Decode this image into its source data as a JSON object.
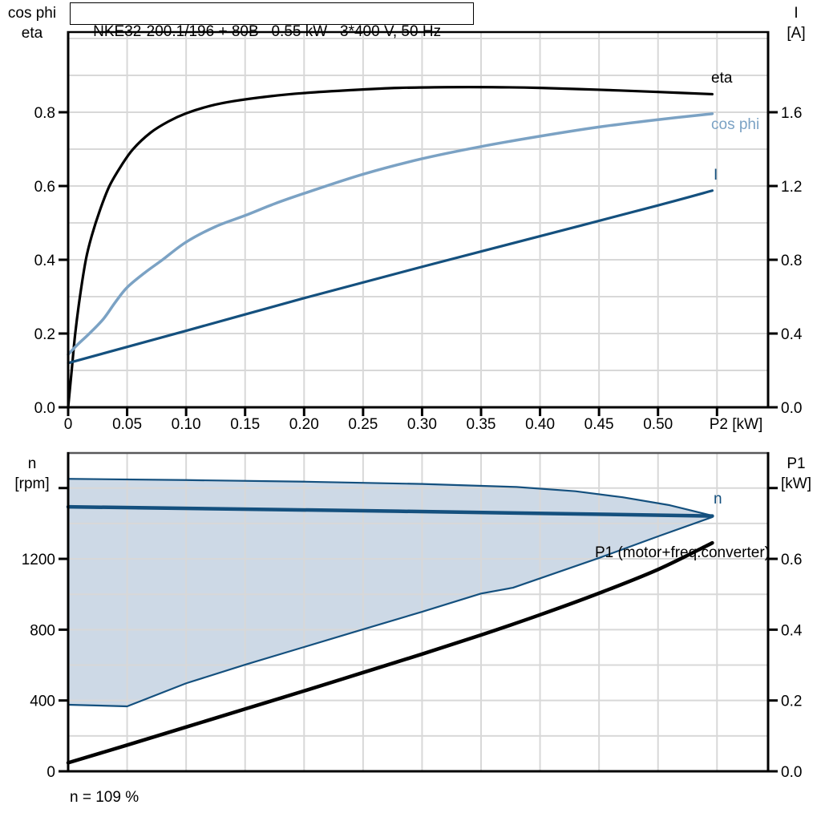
{
  "annotations": {
    "speed_note": "n = 109 %",
    "p1_curve_label": "P1 (motor+freq.converter)"
  },
  "colors": {
    "curve_black": "#000000",
    "curve_light_blue": "#7ba2c4",
    "curve_dark_blue": "#14507e",
    "region_fill": "#cdd9e6",
    "grid": "#d8d8d8",
    "frame": "#000000",
    "lower_frame_top": "#58585a"
  },
  "chart_data": [
    {
      "type": "line",
      "title": "NKE32-200.1/196 + 80B   0.55 kW   3*400 V, 50 Hz",
      "xlabel": "P2 [kW]",
      "ylabel_left": [
        "cos phi",
        "eta"
      ],
      "ylabel_right": [
        "I",
        "[A]"
      ],
      "xlim": [
        0,
        0.5933
      ],
      "ylim_left": [
        0,
        1.0174
      ],
      "ylim_right": [
        0,
        2.0348
      ],
      "xticks": [
        0,
        0.05,
        0.1,
        0.15,
        0.2,
        0.25,
        0.3,
        0.35,
        0.4,
        0.45,
        0.5,
        0.55
      ],
      "xtick_labels": [
        "0",
        "0.05",
        "0.10",
        "0.15",
        "0.20",
        "0.25",
        "0.30",
        "0.35",
        "0.40",
        "0.45",
        "0.50",
        ""
      ],
      "yticks_left": [
        0,
        0.2,
        0.4,
        0.6,
        0.8
      ],
      "ytick_labels_left": [
        "0.0",
        "0.2",
        "0.4",
        "0.6",
        "0.8"
      ],
      "yticks_right": [
        0,
        0.4,
        0.8,
        1.2,
        1.6
      ],
      "ytick_labels_right": [
        "0.0",
        "0.4",
        "0.8",
        "1.2",
        "1.6"
      ],
      "ygrid_step": 0.1,
      "grid_color": "#d8d8d8",
      "legend_position": "right-inline",
      "series": [
        {
          "name": "eta",
          "axis": "left",
          "color": "#000000",
          "width": 3.2,
          "smooth": true,
          "points": [
            [
              0,
              0
            ],
            [
              0.003,
              0.1
            ],
            [
              0.006,
              0.2
            ],
            [
              0.01,
              0.3
            ],
            [
              0.015,
              0.4
            ],
            [
              0.02,
              0.465
            ],
            [
              0.027,
              0.535
            ],
            [
              0.035,
              0.6
            ],
            [
              0.045,
              0.655
            ],
            [
              0.055,
              0.7
            ],
            [
              0.07,
              0.745
            ],
            [
              0.085,
              0.775
            ],
            [
              0.1,
              0.797
            ],
            [
              0.12,
              0.817
            ],
            [
              0.14,
              0.83
            ],
            [
              0.17,
              0.843
            ],
            [
              0.2,
              0.852
            ],
            [
              0.24,
              0.86
            ],
            [
              0.28,
              0.866
            ],
            [
              0.32,
              0.868
            ],
            [
              0.36,
              0.868
            ],
            [
              0.4,
              0.866
            ],
            [
              0.45,
              0.861
            ],
            [
              0.5,
              0.855
            ],
            [
              0.546,
              0.849
            ]
          ]
        },
        {
          "name": "cos phi",
          "axis": "left",
          "color": "#7ba2c4",
          "width": 3.5,
          "smooth": true,
          "points": [
            [
              0,
              0.143
            ],
            [
              0.008,
              0.17
            ],
            [
              0.018,
              0.2
            ],
            [
              0.03,
              0.24
            ],
            [
              0.04,
              0.285
            ],
            [
              0.05,
              0.325
            ],
            [
              0.065,
              0.365
            ],
            [
              0.08,
              0.4
            ],
            [
              0.1,
              0.448
            ],
            [
              0.125,
              0.49
            ],
            [
              0.15,
              0.52
            ],
            [
              0.175,
              0.552
            ],
            [
              0.2,
              0.58
            ],
            [
              0.25,
              0.632
            ],
            [
              0.3,
              0.674
            ],
            [
              0.35,
              0.707
            ],
            [
              0.4,
              0.735
            ],
            [
              0.45,
              0.76
            ],
            [
              0.5,
              0.78
            ],
            [
              0.546,
              0.796
            ]
          ]
        },
        {
          "name": "I",
          "axis": "right",
          "color": "#14507e",
          "width": 3.2,
          "smooth": true,
          "points": [
            [
              0,
              0.24
            ],
            [
              0.1,
              0.415
            ],
            [
              0.2,
              0.592
            ],
            [
              0.3,
              0.762
            ],
            [
              0.4,
              0.928
            ],
            [
              0.5,
              1.095
            ],
            [
              0.546,
              1.175
            ]
          ]
        }
      ]
    },
    {
      "type": "line",
      "note": "n = 109 %",
      "xlabel": "",
      "ylabel_left": [
        "n",
        "[rpm]"
      ],
      "ylabel_right": [
        "P1",
        "[kW]"
      ],
      "xlim": [
        0,
        0.5933
      ],
      "ylim_left": [
        0,
        1798
      ],
      "ylim_right": [
        0,
        0.899
      ],
      "xticks": [
        0,
        0.05,
        0.1,
        0.15,
        0.2,
        0.25,
        0.3,
        0.35,
        0.4,
        0.45,
        0.5,
        0.55
      ],
      "xtick_labels": [
        "",
        "",
        "",
        "",
        "",
        "",
        "",
        "",
        "",
        "",
        "",
        ""
      ],
      "yticks_left": [
        0,
        400,
        800,
        1200,
        1600
      ],
      "ytick_labels_left": [
        "0",
        "400",
        "800",
        "1200",
        ""
      ],
      "yticks_right": [
        0,
        0.2,
        0.4,
        0.6,
        0.8
      ],
      "ytick_labels_right": [
        "0.0",
        "0.2",
        "0.4",
        "0.6",
        ""
      ],
      "ygrid_step": 200,
      "grid_color": "#d8d8d8",
      "region": {
        "name": "speed-control-range",
        "fill": "#cdd9e6",
        "stroke": "#14507e",
        "width": 2.2,
        "upper": [
          [
            0,
            1652
          ],
          [
            0.1,
            1645
          ],
          [
            0.2,
            1636
          ],
          [
            0.3,
            1623
          ],
          [
            0.38,
            1606
          ],
          [
            0.43,
            1582
          ],
          [
            0.47,
            1548
          ],
          [
            0.51,
            1503
          ],
          [
            0.546,
            1444
          ]
        ],
        "lower": [
          [
            0,
            376
          ],
          [
            0.05,
            367
          ],
          [
            0.1,
            497
          ],
          [
            0.15,
            602
          ],
          [
            0.2,
            702
          ],
          [
            0.25,
            802
          ],
          [
            0.3,
            901
          ],
          [
            0.35,
            1004
          ],
          [
            0.377,
            1037
          ],
          [
            0.45,
            1205
          ],
          [
            0.5,
            1327
          ],
          [
            0.546,
            1436
          ]
        ]
      },
      "series": [
        {
          "name": "n",
          "axis": "left",
          "color": "#14507e",
          "width": 4.5,
          "smooth": true,
          "points": [
            [
              0,
              1494
            ],
            [
              0.28,
              1469
            ],
            [
              0.546,
              1442
            ]
          ]
        },
        {
          "name": "P1",
          "label": "P1 (motor+freq.converter)",
          "axis": "right",
          "color": "#000000",
          "width": 4.5,
          "smooth": true,
          "points": [
            [
              0,
              0.024
            ],
            [
              0.05,
              0.074
            ],
            [
              0.1,
              0.125
            ],
            [
              0.15,
              0.176
            ],
            [
              0.2,
              0.227
            ],
            [
              0.25,
              0.279
            ],
            [
              0.3,
              0.331
            ],
            [
              0.35,
              0.385
            ],
            [
              0.4,
              0.442
            ],
            [
              0.45,
              0.503
            ],
            [
              0.5,
              0.57
            ],
            [
              0.546,
              0.645
            ]
          ]
        }
      ]
    }
  ]
}
